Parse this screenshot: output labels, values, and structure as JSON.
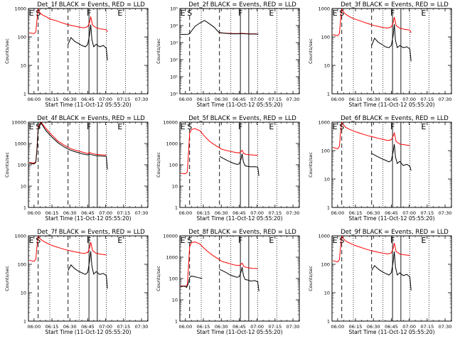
{
  "chart_data": {
    "type": "line",
    "xlabel": "Start Time (11-Oct-12 05:55:20)",
    "ylabel": "Counts/sec",
    "x_ticks": [
      "06:00",
      "06:15",
      "06:30",
      "06:45",
      "07:00",
      "07:15",
      "07:30"
    ],
    "x_tick_minutes": [
      360,
      375,
      390,
      405,
      420,
      435,
      450
    ],
    "xlim": [
      355.33,
      455.33
    ],
    "y_scale": "log",
    "colors": {
      "events": "#000000",
      "lld": "#ff0000"
    },
    "marker_letters": [
      "E",
      "S",
      "F",
      "E"
    ],
    "marker_minutes": [
      357.8,
      363.5,
      406.0,
      432.0
    ],
    "dashed_minutes": [
      363.5,
      388.5
    ],
    "dotted_minutes": [
      373.2,
      398.0,
      420.5,
      436.5
    ],
    "solid_minutes": [
      406.0,
      413.0
    ],
    "panels": [
      {
        "title": "Det_1f BLACK = Events, RED = LLD",
        "ylim": [
          1,
          1000
        ],
        "y_tick_values": [
          1,
          10,
          100,
          1000
        ],
        "y_tick_labels": [
          "1",
          "10",
          "100",
          "1000"
        ],
        "series": [
          {
            "role": "events",
            "x": [
              388.5,
              391,
              394,
              397,
              400,
              403,
              405,
              406.5,
              407.5,
              408.5,
              410,
              412,
              415,
              418,
              420.5,
              421.5
            ],
            "y": [
              55,
              95,
              70,
              60,
              50,
              45,
              55,
              120,
              270,
              80,
              45,
              55,
              45,
              50,
              40,
              15
            ]
          },
          {
            "role": "lld",
            "x": [
              356,
              360,
              361.5,
              362.5,
              363.5,
              365,
              367,
              370,
              374,
              378,
              382,
              386,
              390,
              394,
              398,
              402,
              405,
              406.5,
              407.5,
              409,
              412,
              416,
              420.5,
              421.5
            ],
            "y": [
              140,
              130,
              150,
              400,
              1000,
              700,
              600,
              520,
              420,
              380,
              330,
              290,
              260,
              240,
              220,
              210,
              230,
              330,
              520,
              260,
              210,
              190,
              180,
              150
            ]
          }
        ]
      },
      {
        "title": "Det_2f BLACK = Events, RED = LLD",
        "ylim": [
          1,
          100000
        ],
        "y_tick_values": [
          1,
          10,
          100,
          1000,
          10000,
          100000
        ],
        "y_tick_labels": [
          "10⁰",
          "10¹",
          "10²",
          "10³",
          "10⁴",
          "10⁵"
        ],
        "series": [
          {
            "role": "events",
            "x": [
              356,
              362,
              363.5,
              368,
              372,
              376,
              380,
              384,
              388,
              392,
              396,
              400,
              404,
              407,
              410,
              414,
              418,
              421
            ],
            "y": [
              3000,
              3100,
              3400,
              9000,
              14000,
              20000,
              13000,
              8000,
              4000,
              3600,
              3400,
              3300,
              3300,
              3400,
              3300,
              3200,
              3200,
              3100
            ]
          },
          {
            "role": "lld",
            "x": [
              388.5,
              392,
              396,
              400,
              404,
              407,
              410,
              414,
              418,
              421
            ],
            "y": [
              3800,
              3600,
              3500,
              3400,
              3400,
              3500,
              3400,
              3300,
              3300,
              3200
            ]
          }
        ]
      },
      {
        "title": "Det_3f BLACK = Events, RED = LLD",
        "ylim": [
          1,
          1000
        ],
        "y_tick_values": [
          1,
          10,
          100,
          1000
        ],
        "y_tick_labels": [
          "1",
          "10",
          "100",
          "1000"
        ],
        "series": [
          {
            "role": "events",
            "x": [
              388.5,
              391,
              394,
              397,
              400,
              403,
              405,
              406.5,
              407.5,
              408.5,
              410,
              412,
              415,
              418,
              420.5,
              421.5
            ],
            "y": [
              50,
              90,
              65,
              55,
              45,
              42,
              50,
              110,
              280,
              75,
              42,
              50,
              42,
              45,
              38,
              14
            ]
          },
          {
            "role": "lld",
            "x": [
              356,
              360,
              361.5,
              362.5,
              363.5,
              365,
              367,
              370,
              374,
              378,
              382,
              386,
              390,
              394,
              398,
              402,
              405,
              406.5,
              407.5,
              409,
              412,
              416,
              420.5,
              421.5
            ],
            "y": [
              120,
              110,
              130,
              380,
              1000,
              750,
              620,
              520,
              430,
              380,
              330,
              290,
              255,
              235,
              215,
              205,
              225,
              320,
              500,
              250,
              205,
              185,
              175,
              140
            ]
          }
        ]
      },
      {
        "title": "Det_4f BLACK = Events, RED = LLD",
        "ylim": [
          1,
          10000
        ],
        "y_tick_values": [
          1,
          10,
          100,
          1000,
          10000
        ],
        "y_tick_labels": [
          "1",
          "10",
          "100",
          "1000",
          "10000"
        ],
        "series": [
          {
            "role": "events",
            "x": [
              356,
              360,
              361.5,
              362.5,
              363.5,
              366,
              370,
              375,
              380,
              385,
              390,
              395,
              400,
              405,
              406.5,
              408,
              412,
              416,
              420.5,
              421.5
            ],
            "y": [
              120,
              110,
              130,
              500,
              5000,
              9000,
              4000,
              2000,
              1100,
              700,
              500,
              400,
              330,
              290,
              320,
              300,
              270,
              260,
              250,
              60
            ]
          },
          {
            "role": "lld",
            "x": [
              356,
              360,
              361.5,
              362.5,
              363.5,
              366,
              370,
              375,
              380,
              385,
              390,
              395,
              400,
              405,
              406.5,
              408,
              412,
              416,
              420.5
            ],
            "y": [
              130,
              120,
              140,
              600,
              6000,
              10000,
              5000,
              2500,
              1300,
              850,
              600,
              480,
              400,
              340,
              380,
              350,
              310,
              295,
              285
            ]
          }
        ]
      },
      {
        "title": "Det_5f BLACK = Events, RED = LLD",
        "ylim": [
          1,
          10000
        ],
        "y_tick_values": [
          1,
          10,
          100,
          1000,
          10000
        ],
        "y_tick_labels": [
          "1",
          "10",
          "100",
          "1000",
          "10000"
        ],
        "series": [
          {
            "role": "events",
            "x": [
              388.5,
              391,
              394,
              397,
              400,
              403,
              405,
              406.5,
              407.5,
              408.5,
              410,
              412,
              415,
              418,
              420.5,
              421.5
            ],
            "y": [
              250,
              210,
              170,
              140,
              120,
              105,
              110,
              180,
              330,
              140,
              90,
              85,
              80,
              82,
              78,
              30
            ]
          },
          {
            "role": "lld",
            "x": [
              356,
              360,
              361.5,
              362.5,
              363.5,
              365,
              368,
              372,
              376,
              380,
              384,
              388,
              390,
              394,
              398,
              402,
              405,
              406.5,
              407.5,
              409,
              412,
              416,
              420.5
            ],
            "y": [
              40,
              38,
              45,
              300,
              3000,
              4500,
              5000,
              4000,
              2200,
              1300,
              900,
              650,
              550,
              480,
              420,
              380,
              360,
              420,
              480,
              330,
              300,
              290,
              280
            ]
          }
        ]
      },
      {
        "title": "Det_6f BLACK = Events, RED = LLD",
        "ylim": [
          1,
          1000
        ],
        "y_tick_values": [
          1,
          10,
          100,
          1000
        ],
        "y_tick_labels": [
          "1",
          "10",
          "100",
          "1000"
        ],
        "series": [
          {
            "role": "events",
            "x": [
              388.5,
              391,
              394,
              397,
              400,
              403,
              405,
              406.5,
              407.5,
              408.5,
              410,
              412,
              415,
              418,
              420.5,
              421.5
            ],
            "y": [
              80,
              70,
              60,
              52,
              46,
              40,
              45,
              90,
              170,
              60,
              35,
              42,
              30,
              33,
              28,
              20
            ]
          },
          {
            "role": "lld",
            "x": [
              356,
              360,
              361.5,
              362.5,
              363.5,
              365,
              367,
              370,
              374,
              378,
              382,
              386,
              390,
              394,
              398,
              402,
              405,
              406.5,
              407.5,
              409,
              412,
              416,
              420.5
            ],
            "y": [
              130,
              115,
              140,
              420,
              1000,
              800,
              650,
              560,
              480,
              420,
              370,
              330,
              300,
              270,
              250,
              225,
              240,
              330,
              420,
              210,
              170,
              160,
              150
            ]
          }
        ]
      },
      {
        "title": "Det_7f BLACK = Events, RED = LLD",
        "ylim": [
          1,
          1000
        ],
        "y_tick_values": [
          1,
          10,
          100,
          1000
        ],
        "y_tick_labels": [
          "1",
          "10",
          "100",
          "1000"
        ],
        "series": [
          {
            "role": "events",
            "x": [
              388.5,
              391,
              394,
              397,
              400,
              403,
              405,
              406.5,
              407.5,
              408.5,
              410,
              412,
              415,
              418,
              420.5,
              421.5
            ],
            "y": [
              60,
              95,
              70,
              58,
              50,
              44,
              52,
              130,
              290,
              85,
              45,
              55,
              44,
              48,
              40,
              14
            ]
          },
          {
            "role": "lld",
            "x": [
              356,
              360,
              361.5,
              362.5,
              363.5,
              365,
              367,
              370,
              374,
              378,
              382,
              386,
              390,
              394,
              398,
              402,
              405,
              406.5,
              407.5,
              409,
              412,
              416,
              420.5
            ],
            "y": [
              140,
              125,
              150,
              420,
              1000,
              800,
              680,
              580,
              480,
              420,
              370,
              330,
              300,
              275,
              255,
              240,
              260,
              380,
              600,
              300,
              245,
              225,
              215
            ]
          }
        ]
      },
      {
        "title": "Det_8f BLACK = Events, RED = LLD",
        "ylim": [
          1,
          10000
        ],
        "y_tick_values": [
          1,
          10,
          100,
          1000,
          10000
        ],
        "y_tick_labels": [
          "1",
          "10",
          "100",
          "1000",
          "10000"
        ],
        "series": [
          {
            "role": "events",
            "x": [
              356,
              359,
              361,
              362.5,
              363.5,
              365,
              368,
              371,
              374
            ],
            "y": [
              40,
              45,
              38,
              60,
              110,
              130,
              120,
              110,
              100
            ]
          },
          {
            "role": "events",
            "x": [
              388.5,
              391,
              394,
              397,
              400,
              403,
              405,
              406.5,
              407.5,
              408.5,
              410,
              412,
              415,
              418,
              420.5,
              421.5
            ],
            "y": [
              270,
              230,
              190,
              150,
              130,
              115,
              120,
              200,
              340,
              140,
              90,
              85,
              75,
              80,
              70,
              25
            ]
          },
          {
            "role": "lld",
            "x": [
              356,
              360,
              361.5,
              362.5,
              363.5,
              365,
              368,
              372,
              376,
              380,
              384,
              388,
              390,
              394,
              398,
              402,
              405,
              406.5,
              407.5,
              409,
              412,
              416,
              420.5
            ],
            "y": [
              45,
              42,
              50,
              300,
              3000,
              4800,
              5200,
              4200,
              2500,
              1600,
              1100,
              800,
              650,
              560,
              480,
              420,
              400,
              470,
              520,
              360,
              320,
              300,
              290
            ]
          }
        ]
      },
      {
        "title": "Det_9f BLACK = Events, RED = LLD",
        "ylim": [
          1,
          1000
        ],
        "y_tick_values": [
          1,
          10,
          100,
          1000
        ],
        "y_tick_labels": [
          "1",
          "10",
          "100",
          "1000"
        ],
        "series": [
          {
            "role": "events",
            "x": [
              388.5,
              391,
              394,
              397,
              400,
              403,
              405,
              406.5,
              407.5,
              408.5,
              410,
              412,
              415,
              418,
              420.5,
              421.5
            ],
            "y": [
              60,
              90,
              68,
              56,
              48,
              42,
              50,
              120,
              280,
              80,
              42,
              50,
              40,
              44,
              36,
              12
            ]
          },
          {
            "role": "lld",
            "x": [
              356,
              360,
              361.5,
              362.5,
              363.5,
              365,
              367,
              370,
              374,
              378,
              382,
              386,
              390,
              394,
              398,
              402,
              405,
              406.5,
              407.5,
              409,
              412,
              416,
              420.5
            ],
            "y": [
              135,
              120,
              145,
              400,
              1000,
              780,
              650,
              560,
              470,
              410,
              360,
              320,
              290,
              265,
              245,
              230,
              250,
              360,
              560,
              280,
              230,
              215,
              205
            ]
          }
        ]
      }
    ]
  }
}
